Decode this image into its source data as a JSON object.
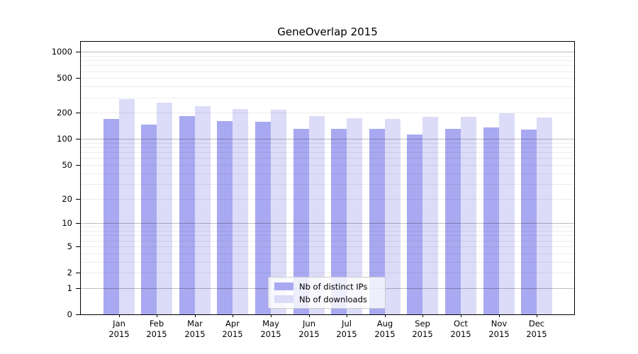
{
  "title": "GeneOverlap 2015",
  "legend": {
    "items": [
      {
        "label": "Nb of distinct IPs",
        "color": "#a8a9f1"
      },
      {
        "label": "Nb of downloads",
        "color": "#dcdcf9"
      }
    ]
  },
  "chart_data": {
    "type": "bar",
    "title": "GeneOverlap 2015",
    "categories": [
      "Jan",
      "Feb",
      "Mar",
      "Apr",
      "May",
      "Jun",
      "Jul",
      "Aug",
      "Sep",
      "Oct",
      "Nov",
      "Dec"
    ],
    "x_tick_second_line": "2015",
    "series": [
      {
        "name": "Nb of distinct IPs",
        "color": "#a8a9f1",
        "values": [
          170,
          147,
          184,
          162,
          158,
          130,
          130,
          131,
          113,
          131,
          136,
          128
        ]
      },
      {
        "name": "Nb of downloads",
        "color": "#dcdcf9",
        "values": [
          288,
          262,
          240,
          223,
          218,
          184,
          175,
          170,
          179,
          182,
          198,
          177
        ]
      }
    ],
    "y_axis": {
      "scale": "log10(1+v)",
      "tick_values": [
        1000,
        500,
        200,
        100,
        50,
        20,
        10,
        5,
        2,
        1,
        0
      ],
      "minor_grid_values": [
        2,
        3,
        4,
        5,
        6,
        7,
        8,
        9,
        20,
        30,
        40,
        50,
        60,
        70,
        80,
        90,
        200,
        300,
        400,
        500,
        600,
        700,
        800,
        900
      ],
      "major_grid_values": [
        1,
        10,
        100,
        1000
      ],
      "ylim": [
        0,
        1120
      ]
    },
    "legend_position": "lower center inside plot",
    "grid": true
  }
}
